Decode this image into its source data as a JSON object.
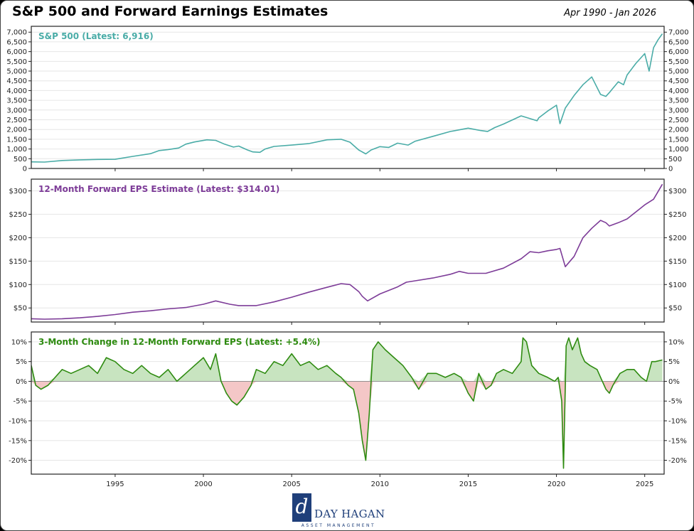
{
  "header": {
    "title": "S&P 500 and Forward Earnings Estimates",
    "date_range": "Apr 1990 - Jan 2026"
  },
  "logo": {
    "mark": "d",
    "name": "DAY HAGAN",
    "subtitle": "ASSET MANAGEMENT"
  },
  "chart_data": [
    {
      "type": "line",
      "title": "S&P 500 (Latest: 6,916)",
      "color": "#4aaca7",
      "ylim": [
        0,
        7300
      ],
      "yticks": [
        0,
        500,
        1000,
        1500,
        2000,
        2500,
        3000,
        3500,
        4000,
        4500,
        5000,
        5500,
        6000,
        6500,
        7000
      ],
      "ytick_labels": [
        "0",
        "500",
        "1,000",
        "1,500",
        "2,000",
        "2,500",
        "3,000",
        "3,500",
        "4,000",
        "4,500",
        "5,000",
        "5,500",
        "6,000",
        "6,500",
        "7,000"
      ],
      "grid": true,
      "x": [
        1990.25,
        1991.0,
        1992.0,
        1993.0,
        1994.0,
        1995.0,
        1996.0,
        1997.0,
        1997.5,
        1998.0,
        1998.6,
        1999.0,
        1999.5,
        2000.2,
        2000.7,
        2001.2,
        2001.7,
        2002.0,
        2002.5,
        2002.8,
        2003.2,
        2003.5,
        2004.0,
        2005.0,
        2006.0,
        2007.0,
        2007.8,
        2008.3,
        2008.8,
        2009.2,
        2009.5,
        2010.0,
        2010.5,
        2011.0,
        2011.6,
        2012.0,
        2013.0,
        2014.0,
        2015.0,
        2015.7,
        2016.1,
        2016.5,
        2017.0,
        2018.0,
        2018.9,
        2019.0,
        2019.5,
        2020.0,
        2020.2,
        2020.5,
        2021.0,
        2021.5,
        2022.0,
        2022.5,
        2022.8,
        2023.0,
        2023.5,
        2023.8,
        2024.0,
        2024.5,
        2025.0,
        2025.25,
        2025.5,
        2025.75,
        2026.0
      ],
      "y": [
        340,
        330,
        410,
        440,
        465,
        470,
        620,
        760,
        920,
        970,
        1050,
        1250,
        1360,
        1470,
        1440,
        1250,
        1100,
        1150,
        950,
        850,
        830,
        1000,
        1130,
        1200,
        1280,
        1470,
        1500,
        1350,
        950,
        750,
        950,
        1120,
        1080,
        1300,
        1200,
        1400,
        1650,
        1900,
        2070,
        1950,
        1900,
        2100,
        2280,
        2700,
        2450,
        2600,
        2950,
        3250,
        2300,
        3100,
        3750,
        4300,
        4700,
        3800,
        3700,
        3900,
        4450,
        4300,
        4800,
        5400,
        5900,
        5000,
        6200,
        6600,
        6916
      ],
      "xlim": [
        1990.25,
        2026.1
      ]
    },
    {
      "type": "line",
      "title": "12-Month Forward EPS Estimate (Latest: $314.01)",
      "color": "#7d3c98",
      "ylim": [
        20,
        325
      ],
      "yticks": [
        50,
        100,
        150,
        200,
        250,
        300
      ],
      "ytick_labels": [
        "$50",
        "$100",
        "$150",
        "$200",
        "$250",
        "$300"
      ],
      "grid": true,
      "x": [
        1990.25,
        1991.0,
        1992.0,
        1993.0,
        1994.0,
        1995.0,
        1996.0,
        1997.0,
        1998.0,
        1999.0,
        2000.0,
        2000.7,
        2001.5,
        2002.0,
        2003.0,
        2004.0,
        2005.0,
        2006.0,
        2007.0,
        2007.8,
        2008.3,
        2008.8,
        2009.0,
        2009.3,
        2010.0,
        2011.0,
        2011.5,
        2012.0,
        2013.0,
        2014.0,
        2014.5,
        2015.0,
        2016.0,
        2017.0,
        2018.0,
        2018.5,
        2019.0,
        2019.5,
        2020.0,
        2020.2,
        2020.5,
        2021.0,
        2021.5,
        2022.0,
        2022.5,
        2022.8,
        2023.0,
        2023.5,
        2024.0,
        2024.5,
        2025.0,
        2025.5,
        2026.0
      ],
      "y": [
        27,
        26,
        27,
        29,
        32,
        36,
        41,
        44,
        48,
        51,
        58,
        65,
        58,
        55,
        55,
        63,
        73,
        84,
        94,
        102,
        100,
        85,
        75,
        65,
        80,
        95,
        105,
        108,
        114,
        122,
        128,
        124,
        124,
        135,
        155,
        170,
        168,
        172,
        175,
        177,
        138,
        160,
        200,
        220,
        237,
        232,
        225,
        232,
        240,
        255,
        270,
        282,
        314
      ],
      "xlim": [
        1990.25,
        2026.1
      ]
    },
    {
      "type": "area",
      "title": "3-Month Change in 12-Month Forward EPS (Latest: +5.4%)",
      "color": "#2e8b10",
      "positive_fill": "#c8e4c0",
      "negative_fill": "#f4c7c7",
      "ylim": [
        -23.5,
        12.5
      ],
      "yticks": [
        -20,
        -15,
        -10,
        -5,
        0,
        5,
        10
      ],
      "ytick_labels": [
        "-20%",
        "-15%",
        "-10%",
        "-5%",
        "0%",
        "5%",
        "10%"
      ],
      "grid": true,
      "xticks": [
        1995,
        2000,
        2005,
        2010,
        2015,
        2020,
        2025
      ],
      "xtick_labels": [
        "1995",
        "2000",
        "2005",
        "2010",
        "2015",
        "2020",
        "2025"
      ],
      "x": [
        1990.25,
        1990.5,
        1990.8,
        1991.2,
        1991.6,
        1992.0,
        1992.5,
        1993.0,
        1993.5,
        1994.0,
        1994.5,
        1995.0,
        1995.5,
        1996.0,
        1996.5,
        1997.0,
        1997.5,
        1998.0,
        1998.5,
        1999.0,
        1999.5,
        2000.0,
        2000.4,
        2000.7,
        2001.0,
        2001.3,
        2001.6,
        2001.9,
        2002.3,
        2002.7,
        2003.0,
        2003.5,
        2004.0,
        2004.5,
        2005.0,
        2005.5,
        2006.0,
        2006.5,
        2007.0,
        2007.5,
        2007.8,
        2008.2,
        2008.5,
        2008.8,
        2009.0,
        2009.2,
        2009.4,
        2009.6,
        2009.9,
        2010.3,
        2010.8,
        2011.3,
        2011.8,
        2012.2,
        2012.7,
        2013.2,
        2013.7,
        2014.2,
        2014.6,
        2015.0,
        2015.3,
        2015.6,
        2016.0,
        2016.3,
        2016.6,
        2017.0,
        2017.5,
        2018.0,
        2018.1,
        2018.3,
        2018.6,
        2019.0,
        2019.5,
        2019.9,
        2020.1,
        2020.3,
        2020.4,
        2020.55,
        2020.7,
        2020.9,
        2021.2,
        2021.4,
        2021.6,
        2021.9,
        2022.3,
        2022.6,
        2022.8,
        2023.0,
        2023.2,
        2023.6,
        2024.0,
        2024.4,
        2024.8,
        2025.1,
        2025.4,
        2025.6,
        2026.0
      ],
      "y": [
        4,
        -1,
        -2,
        -1,
        1,
        3,
        2,
        3,
        4,
        2,
        6,
        5,
        3,
        2,
        4,
        2,
        1,
        3,
        0,
        2,
        4,
        6,
        3,
        7,
        0,
        -3,
        -5,
        -6,
        -4,
        -1,
        3,
        2,
        5,
        4,
        7,
        4,
        5,
        3,
        4,
        2,
        1,
        -1,
        -2,
        -8,
        -15,
        -20,
        -8,
        8,
        10,
        8,
        6,
        4,
        1,
        -2,
        2,
        2,
        1,
        2,
        1,
        -3,
        -5,
        2,
        -2,
        -1,
        2,
        3,
        2,
        5,
        11,
        10,
        4,
        2,
        1,
        0,
        1,
        -5,
        -22,
        9,
        11,
        8,
        11,
        7,
        5,
        4,
        3,
        0,
        -2,
        -3,
        -1,
        2,
        3,
        3,
        1,
        0,
        5,
        5,
        5.4
      ],
      "xlim": [
        1990.25,
        2026.1
      ]
    }
  ]
}
